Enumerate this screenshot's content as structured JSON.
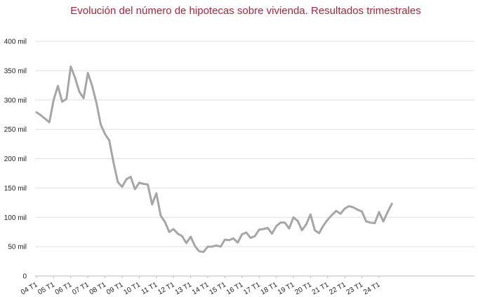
{
  "chart_data": {
    "type": "line",
    "title": "Evolución del número de hipotecas sobre vivienda. Resultados trimestrales",
    "xlabel": "",
    "ylabel": "",
    "ylim": [
      0,
      400000
    ],
    "yticks": [
      {
        "value": 0,
        "label": "0"
      },
      {
        "value": 50000,
        "label": "50 mil"
      },
      {
        "value": 100000,
        "label": "100 mil"
      },
      {
        "value": 150000,
        "label": "150 mil"
      },
      {
        "value": 200000,
        "label": "200 mil"
      },
      {
        "value": 250000,
        "label": "250 mil"
      },
      {
        "value": 300000,
        "label": "300 mil"
      },
      {
        "value": 350000,
        "label": "350 mil"
      },
      {
        "value": 400000,
        "label": "400 mil"
      }
    ],
    "x": [
      "04 T1",
      "04 T2",
      "04 T3",
      "04 T4",
      "05 T1",
      "05 T2",
      "05 T3",
      "05 T4",
      "06 T1",
      "06 T2",
      "06 T3",
      "06 T4",
      "07 T1",
      "07 T2",
      "07 T3",
      "07 T4",
      "08 T1",
      "08 T2",
      "08 T3",
      "08 T4",
      "09 T1",
      "09 T2",
      "09 T3",
      "09 T4",
      "10 T1",
      "10 T2",
      "10 T3",
      "10 T4",
      "11 T1",
      "11 T2",
      "11 T3",
      "11 T4",
      "12 T1",
      "12 T2",
      "12 T3",
      "12 T4",
      "13 T1",
      "13 T2",
      "13 T3",
      "13 T4",
      "14 T1",
      "14 T2",
      "14 T3",
      "14 T4",
      "15 T1",
      "15 T2",
      "15 T3",
      "15 T4",
      "16 T1",
      "16 T2",
      "16 T3",
      "16 T4",
      "17 T1",
      "17 T2",
      "17 T3",
      "17 T4",
      "18 T1",
      "18 T2",
      "18 T3",
      "18 T4",
      "19 T1",
      "19 T2",
      "19 T3",
      "19 T4",
      "20 T1",
      "20 T2",
      "20 T3",
      "20 T4",
      "21 T1",
      "21 T2",
      "21 T3",
      "21 T4",
      "22 T1",
      "22 T2",
      "22 T3",
      "22 T4",
      "23 T1",
      "23 T2",
      "23 T3",
      "23 T4",
      "24 T1",
      "24 T2",
      "24 T3",
      "24 T4"
    ],
    "xtick_labels": [
      "04 T1",
      "05 T1",
      "06 T1",
      "07 T1",
      "08 T1",
      "09 T1",
      "10 T1",
      "11 T1",
      "12 T1",
      "13 T1",
      "14 T1",
      "15 T1",
      "16 T1",
      "17 T1",
      "18 T1",
      "19 T1",
      "20 T1",
      "21 T1",
      "22 T1",
      "23 T1",
      "24 T1"
    ],
    "series": [
      {
        "color": "#a6a6a6",
        "values": [
          279000,
          274000,
          268000,
          262000,
          300000,
          324000,
          297000,
          302000,
          357000,
          338000,
          314000,
          303000,
          346000,
          324000,
          295000,
          258000,
          242000,
          231000,
          193000,
          160000,
          152000,
          165000,
          169000,
          148000,
          159000,
          157000,
          156000,
          122000,
          141000,
          103000,
          92000,
          75000,
          80000,
          72000,
          68000,
          56000,
          67000,
          51000,
          42000,
          41000,
          50000,
          50000,
          52000,
          50000,
          62000,
          61000,
          64000,
          57000,
          71000,
          74000,
          65000,
          68000,
          79000,
          80000,
          82000,
          72000,
          85000,
          91000,
          91000,
          81000,
          100000,
          94000,
          78000,
          88000,
          105000,
          78000,
          73000,
          86000,
          96000,
          104000,
          111000,
          106000,
          115000,
          119000,
          117000,
          113000,
          110000,
          93000,
          91000,
          90000,
          109000,
          93000,
          109000,
          123000
        ]
      }
    ]
  }
}
